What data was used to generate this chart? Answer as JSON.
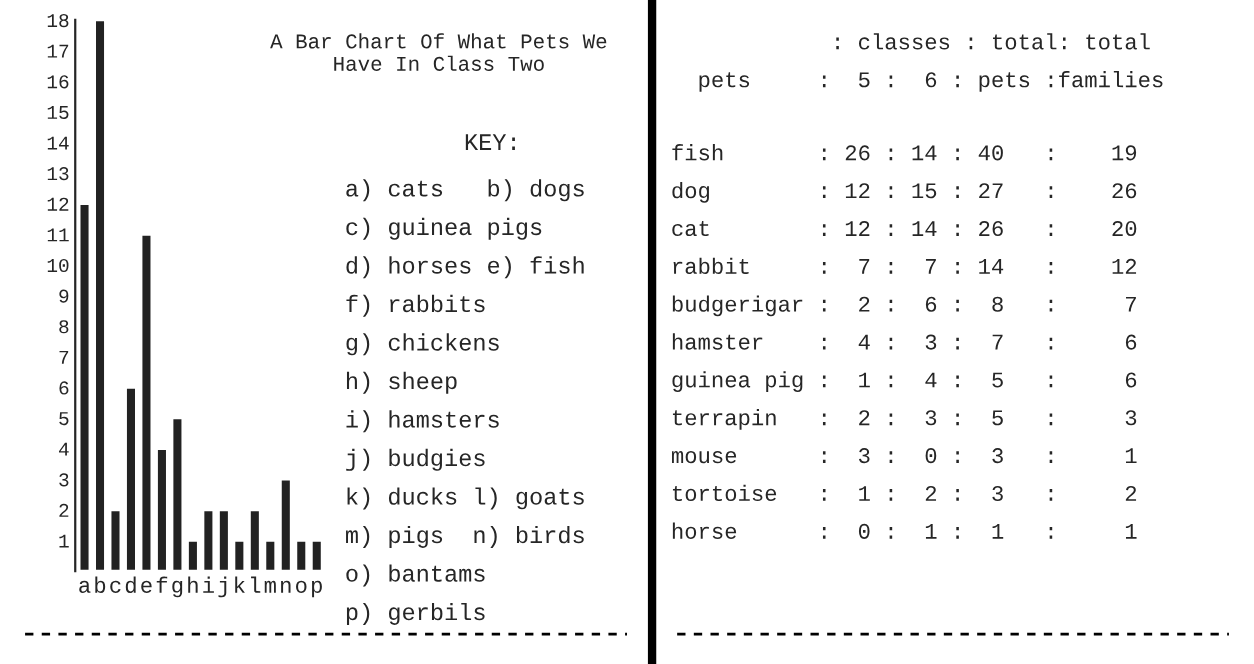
{
  "chart_data": [
    {
      "type": "bar",
      "title": "A Bar Chart Of What Pets We\nHave In Class Two",
      "categories": [
        "a",
        "b",
        "c",
        "d",
        "e",
        "f",
        "g",
        "h",
        "i",
        "j",
        "k",
        "l",
        "m",
        "n",
        "o",
        "p"
      ],
      "values": [
        12,
        18,
        2,
        6,
        11,
        4,
        5,
        1,
        2,
        2,
        1,
        2,
        1,
        3,
        1,
        1
      ],
      "color": "#222222",
      "ylim": [
        0,
        18
      ],
      "yticks": [
        1,
        2,
        3,
        4,
        5,
        6,
        7,
        8,
        9,
        10,
        11,
        12,
        13,
        14,
        15,
        16,
        17,
        18
      ],
      "grid": false,
      "annotations": [
        "KEY:",
        "a) cats   b) dogs",
        "c) guinea pigs",
        "d) horses e) fish",
        "f) rabbits",
        "g) chickens",
        "h) sheep",
        "i) hamsters",
        "j) budgies",
        "k) ducks l) goats",
        "m) pigs  n) birds",
        "o) bantams",
        "p) gerbils"
      ]
    },
    {
      "type": "other",
      "annotations": [
        "            : classes : total: total",
        "  pets     :  5 :  6 : pets :families",
        "fish       : 26 : 14 : 40   :    19",
        "dog        : 12 : 15 : 27   :    26",
        "cat        : 12 : 14 : 26   :    20",
        "rabbit     :  7 :  7 : 14   :    12",
        "budgerigar :  2 :  6 :  8   :     7",
        "hamster    :  4 :  3 :  7   :     6",
        "guinea pig :  1 :  4 :  5   :     6",
        "terrapin   :  2 :  3 :  5   :     3",
        "mouse      :  3 :  0 :  3   :     1",
        "tortoise   :  1 :  2 :  3   :     2",
        "horse      :  0 :  1 :  1   :     1"
      ]
    }
  ]
}
